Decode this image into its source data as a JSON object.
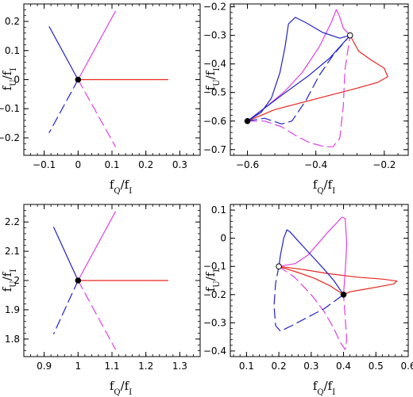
{
  "colors": {
    "red": "#e8261f",
    "magenta": "#e040e0",
    "blue": "#2222cc",
    "axis": "#000000"
  },
  "chart_data": [
    {
      "type": "line",
      "xlabel": {
        "main": "f",
        "sub": "Q",
        "mid": "/f",
        "sub2": "I"
      },
      "ylabel": {
        "main": "f",
        "sub": "U",
        "mid": "/f",
        "sub2": "I"
      },
      "xlim": [
        -0.16,
        0.36
      ],
      "ylim": [
        -0.26,
        0.26
      ],
      "xticks": [
        -0.1,
        0,
        0.1,
        0.2,
        0.3
      ],
      "xticklabels": [
        "−0.1",
        "0",
        "0.1",
        "0.2",
        "0.3"
      ],
      "yticks": [
        -0.2,
        -0.1,
        0,
        0.1,
        0.2
      ],
      "yticklabels": [
        "−0.2",
        "−0.1",
        "0",
        "0.1",
        "0.2"
      ],
      "series": [
        {
          "color": "red",
          "dash": "solid",
          "points": [
            [
              0,
              0
            ],
            [
              0.265,
              0
            ]
          ]
        },
        {
          "color": "magenta",
          "dash": "solid",
          "points": [
            [
              0,
              0
            ],
            [
              0.11,
              0.235
            ]
          ]
        },
        {
          "color": "magenta",
          "dash": "dashed",
          "points": [
            [
              0,
              0
            ],
            [
              0.11,
              -0.23
            ]
          ]
        },
        {
          "color": "blue",
          "dash": "solid",
          "points": [
            [
              0,
              0
            ],
            [
              -0.085,
              0.182
            ]
          ]
        },
        {
          "color": "blue",
          "dash": "dashed",
          "points": [
            [
              0,
              0
            ],
            [
              -0.085,
              -0.182
            ]
          ]
        }
      ],
      "markers": [
        {
          "x": 0,
          "y": 0,
          "fill": "filled"
        }
      ]
    },
    {
      "type": "line",
      "xlabel": {
        "main": "f",
        "sub": "Q",
        "mid": "/f",
        "sub2": "I"
      },
      "ylabel": {
        "main": "f",
        "sub": "U",
        "mid": "/f",
        "sub2": "I"
      },
      "xlim": [
        -0.65,
        -0.13
      ],
      "ylim": [
        -0.72,
        -0.19
      ],
      "xticks": [
        -0.6,
        -0.4,
        -0.2
      ],
      "xticklabels": [
        "−0.6",
        "−0.4",
        "−0.2"
      ],
      "yticks": [
        -0.7,
        -0.6,
        -0.5,
        -0.4,
        -0.3,
        -0.2
      ],
      "yticklabels": [
        "−0.7",
        "−0.6",
        "−0.5",
        "−0.4",
        "−0.3",
        "−0.2"
      ],
      "series": [
        {
          "color": "red",
          "dash": "solid",
          "points": [
            [
              -0.6,
              -0.6
            ],
            [
              -0.52,
              -0.56
            ],
            [
              -0.44,
              -0.535
            ],
            [
              -0.36,
              -0.51
            ],
            [
              -0.28,
              -0.485
            ],
            [
              -0.22,
              -0.465
            ],
            [
              -0.19,
              -0.445
            ],
            [
              -0.2,
              -0.415
            ],
            [
              -0.24,
              -0.385
            ],
            [
              -0.275,
              -0.355
            ],
            [
              -0.3,
              -0.3
            ]
          ]
        },
        {
          "color": "magenta",
          "dash": "solid",
          "points": [
            [
              -0.6,
              -0.6
            ],
            [
              -0.54,
              -0.545
            ],
            [
              -0.49,
              -0.495
            ],
            [
              -0.44,
              -0.43
            ],
            [
              -0.39,
              -0.34
            ],
            [
              -0.355,
              -0.255
            ],
            [
              -0.34,
              -0.21
            ],
            [
              -0.33,
              -0.235
            ],
            [
              -0.32,
              -0.275
            ],
            [
              -0.3,
              -0.3
            ]
          ]
        },
        {
          "color": "magenta",
          "dash": "dashed",
          "points": [
            [
              -0.6,
              -0.6
            ],
            [
              -0.55,
              -0.6
            ],
            [
              -0.5,
              -0.62
            ],
            [
              -0.46,
              -0.65
            ],
            [
              -0.42,
              -0.675
            ],
            [
              -0.375,
              -0.69
            ],
            [
              -0.35,
              -0.69
            ],
            [
              -0.33,
              -0.66
            ],
            [
              -0.32,
              -0.55
            ],
            [
              -0.315,
              -0.42
            ],
            [
              -0.3,
              -0.3
            ]
          ]
        },
        {
          "color": "blue",
          "dash": "solid",
          "points": [
            [
              -0.6,
              -0.6
            ],
            [
              -0.56,
              -0.57
            ],
            [
              -0.53,
              -0.52
            ],
            [
              -0.505,
              -0.43
            ],
            [
              -0.49,
              -0.34
            ],
            [
              -0.48,
              -0.26
            ],
            [
              -0.46,
              -0.237
            ],
            [
              -0.43,
              -0.255
            ],
            [
              -0.38,
              -0.29
            ],
            [
              -0.33,
              -0.31
            ],
            [
              -0.3,
              -0.3
            ]
          ]
        },
        {
          "color": "blue",
          "dash": "solid",
          "points": [
            [
              -0.6,
              -0.6
            ],
            [
              -0.5,
              -0.51
            ],
            [
              -0.42,
              -0.44
            ],
            [
              -0.36,
              -0.38
            ],
            [
              -0.3,
              -0.3
            ]
          ]
        },
        {
          "color": "blue",
          "dash": "dashed",
          "points": [
            [
              -0.6,
              -0.6
            ],
            [
              -0.55,
              -0.59
            ],
            [
              -0.5,
              -0.61
            ],
            [
              -0.47,
              -0.6
            ],
            [
              -0.43,
              -0.53
            ],
            [
              -0.39,
              -0.44
            ],
            [
              -0.35,
              -0.37
            ],
            [
              -0.3,
              -0.3
            ]
          ]
        }
      ],
      "markers": [
        {
          "x": -0.6,
          "y": -0.6,
          "fill": "filled"
        },
        {
          "x": -0.3,
          "y": -0.3,
          "fill": "open"
        }
      ]
    },
    {
      "type": "line",
      "xlabel": {
        "main": "f",
        "sub": "Q",
        "mid": "/f",
        "sub2": "I"
      },
      "ylabel": {
        "main": "f",
        "sub": "U",
        "mid": "/f",
        "sub2": "I"
      },
      "xlim": [
        0.84,
        1.36
      ],
      "ylim": [
        1.74,
        2.26
      ],
      "xticks": [
        0.9,
        1,
        1.1,
        1.2,
        1.3
      ],
      "xticklabels": [
        "0.9",
        "1",
        "1.1",
        "1.2",
        "1.3"
      ],
      "yticks": [
        1.8,
        1.9,
        2,
        2.1,
        2.2
      ],
      "yticklabels": [
        "1.8",
        "1.9",
        "2",
        "2.1",
        "2.2"
      ],
      "series": [
        {
          "color": "red",
          "dash": "solid",
          "points": [
            [
              1,
              2
            ],
            [
              1.265,
              2
            ]
          ]
        },
        {
          "color": "magenta",
          "dash": "solid",
          "points": [
            [
              1,
              2
            ],
            [
              1.11,
              2.235
            ]
          ]
        },
        {
          "color": "magenta",
          "dash": "dashed",
          "points": [
            [
              1,
              2
            ],
            [
              1.11,
              1.765
            ]
          ]
        },
        {
          "color": "blue",
          "dash": "solid",
          "points": [
            [
              1,
              2
            ],
            [
              0.928,
              2.182
            ]
          ]
        },
        {
          "color": "blue",
          "dash": "dashed",
          "points": [
            [
              1,
              2
            ],
            [
              0.928,
              1.818
            ]
          ]
        }
      ],
      "markers": [
        {
          "x": 1,
          "y": 2,
          "fill": "filled"
        }
      ]
    },
    {
      "type": "line",
      "xlabel": {
        "main": "f",
        "sub": "Q",
        "mid": "/f",
        "sub2": "I"
      },
      "ylabel": {
        "main": "f",
        "sub": "U",
        "mid": "/f",
        "sub2": "I"
      },
      "xlim": [
        0.05,
        0.6
      ],
      "ylim": [
        -0.42,
        0.12
      ],
      "xticks": [
        0.1,
        0.2,
        0.3,
        0.4,
        0.5,
        0.6
      ],
      "xticklabels": [
        "0.1",
        "0.2",
        "0.3",
        "0.4",
        "0.5",
        "0.6"
      ],
      "yticks": [
        -0.4,
        -0.3,
        -0.2,
        -0.1,
        0,
        0.1
      ],
      "yticklabels": [
        "−0.4",
        "−0.3",
        "−0.2",
        "−0.1",
        "0",
        "0.1"
      ],
      "series": [
        {
          "color": "red",
          "dash": "solid",
          "points": [
            [
              0.2,
              -0.1
            ],
            [
              0.27,
              -0.11
            ],
            [
              0.35,
              -0.125
            ],
            [
              0.44,
              -0.138
            ],
            [
              0.52,
              -0.145
            ],
            [
              0.565,
              -0.152
            ],
            [
              0.555,
              -0.162
            ],
            [
              0.51,
              -0.172
            ],
            [
              0.46,
              -0.182
            ],
            [
              0.42,
              -0.19
            ],
            [
              0.4,
              -0.2
            ]
          ]
        },
        {
          "color": "red",
          "dash": "solid",
          "points": [
            [
              0.2,
              -0.1
            ],
            [
              0.26,
              -0.122
            ],
            [
              0.31,
              -0.142
            ],
            [
              0.36,
              -0.17
            ],
            [
              0.4,
              -0.2
            ]
          ]
        },
        {
          "color": "magenta",
          "dash": "solid",
          "points": [
            [
              0.2,
              -0.1
            ],
            [
              0.25,
              -0.09
            ],
            [
              0.29,
              -0.06
            ],
            [
              0.32,
              -0.02
            ],
            [
              0.35,
              0.02
            ],
            [
              0.375,
              0.05
            ],
            [
              0.395,
              0.075
            ],
            [
              0.405,
              0.07
            ],
            [
              0.41,
              -0.02
            ],
            [
              0.405,
              -0.12
            ],
            [
              0.4,
              -0.2
            ]
          ]
        },
        {
          "color": "magenta",
          "dash": "dashed",
          "points": [
            [
              0.2,
              -0.1
            ],
            [
              0.25,
              -0.14
            ],
            [
              0.3,
              -0.2
            ],
            [
              0.34,
              -0.26
            ],
            [
              0.37,
              -0.32
            ],
            [
              0.39,
              -0.37
            ],
            [
              0.405,
              -0.395
            ],
            [
              0.41,
              -0.36
            ],
            [
              0.405,
              -0.28
            ],
            [
              0.4,
              -0.2
            ]
          ]
        },
        {
          "color": "blue",
          "dash": "solid",
          "points": [
            [
              0.2,
              -0.1
            ],
            [
              0.205,
              -0.06
            ],
            [
              0.215,
              0
            ],
            [
              0.225,
              0.03
            ],
            [
              0.235,
              0.022
            ],
            [
              0.26,
              -0.01
            ],
            [
              0.3,
              -0.06
            ],
            [
              0.34,
              -0.11
            ],
            [
              0.37,
              -0.15
            ],
            [
              0.4,
              -0.2
            ]
          ]
        },
        {
          "color": "blue",
          "dash": "dashed",
          "points": [
            [
              0.2,
              -0.1
            ],
            [
              0.19,
              -0.16
            ],
            [
              0.185,
              -0.24
            ],
            [
              0.19,
              -0.31
            ],
            [
              0.205,
              -0.33
            ],
            [
              0.24,
              -0.31
            ],
            [
              0.29,
              -0.28
            ],
            [
              0.34,
              -0.25
            ],
            [
              0.37,
              -0.225
            ],
            [
              0.4,
              -0.2
            ]
          ]
        }
      ],
      "markers": [
        {
          "x": 0.2,
          "y": -0.1,
          "fill": "open"
        },
        {
          "x": 0.4,
          "y": -0.2,
          "fill": "filled"
        }
      ]
    }
  ]
}
